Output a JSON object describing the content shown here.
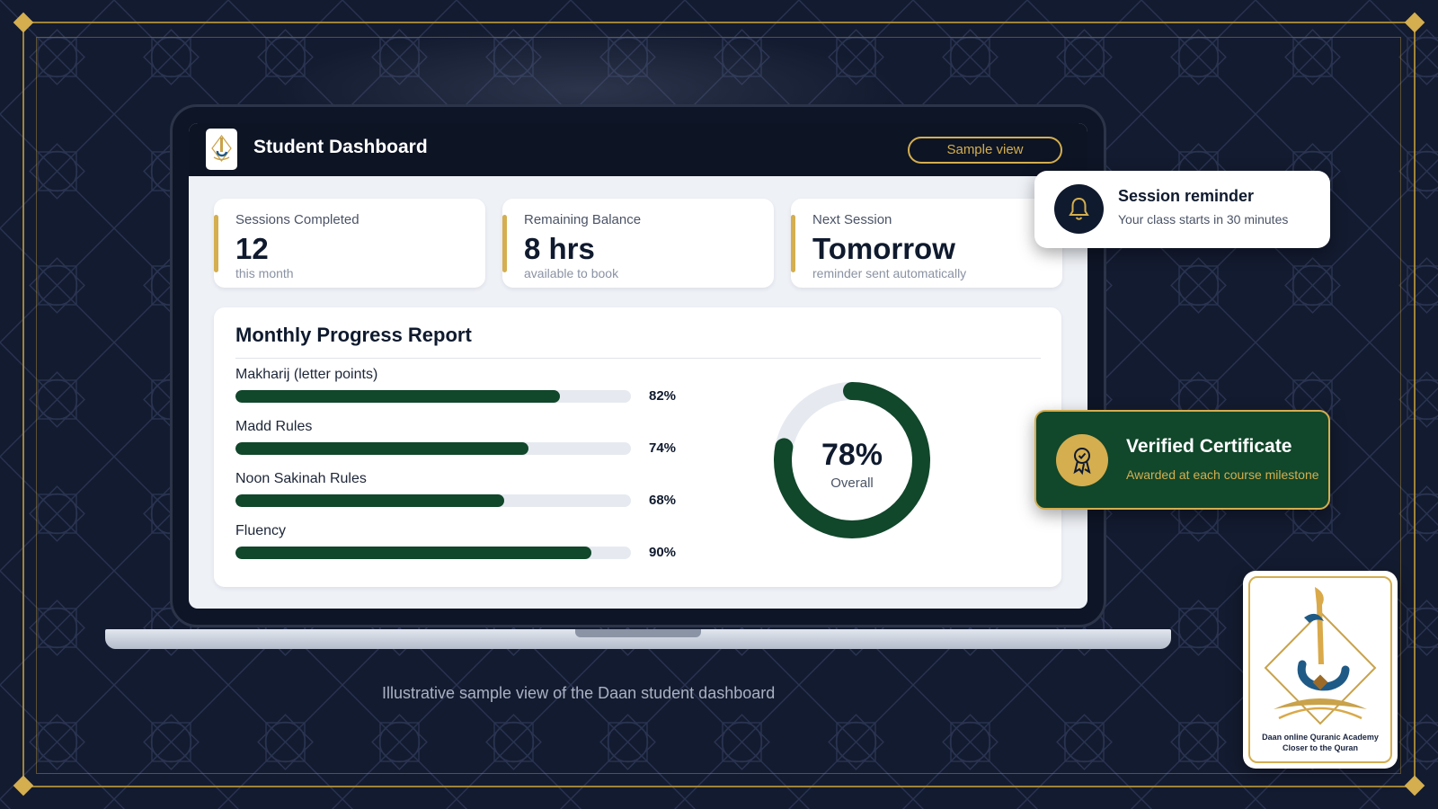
{
  "header": {
    "title": "Student Dashboard",
    "sample_view_label": "Sample view"
  },
  "stats": [
    {
      "label": "Sessions Completed",
      "value": "12",
      "sub": "this month"
    },
    {
      "label": "Remaining Balance",
      "value": "8 hrs",
      "sub": "available to book"
    },
    {
      "label": "Next Session",
      "value": "Tomorrow",
      "sub": "reminder sent automatically"
    }
  ],
  "progress": {
    "title": "Monthly Progress Report",
    "metrics": [
      {
        "label": "Makharij (letter points)",
        "pct_text": "82%",
        "value": 0.82
      },
      {
        "label": "Madd Rules",
        "pct_text": "74%",
        "value": 0.74
      },
      {
        "label": "Noon Sakinah Rules",
        "pct_text": "68%",
        "value": 0.68
      },
      {
        "label": "Fluency",
        "pct_text": "90%",
        "value": 0.9
      }
    ],
    "overall": {
      "pct_text": "78%",
      "label": "Overall",
      "value": 0.78
    }
  },
  "reminder": {
    "title": "Session reminder",
    "subtitle": "Your class starts in 30 minutes",
    "icon": "bell-icon"
  },
  "certificate": {
    "title": "Verified Certificate",
    "subtitle": "Awarded at each course milestone",
    "icon": "award-ribbon-icon"
  },
  "caption": "Illustrative sample view of the Daan student dashboard",
  "seal": {
    "line1": "Daan online Quranic Academy",
    "line2": "Closer to the Quran"
  },
  "colors": {
    "background": "#131b30",
    "gold": "#d4ae4f",
    "green": "#11472b",
    "navy": "#0f1a2e"
  }
}
